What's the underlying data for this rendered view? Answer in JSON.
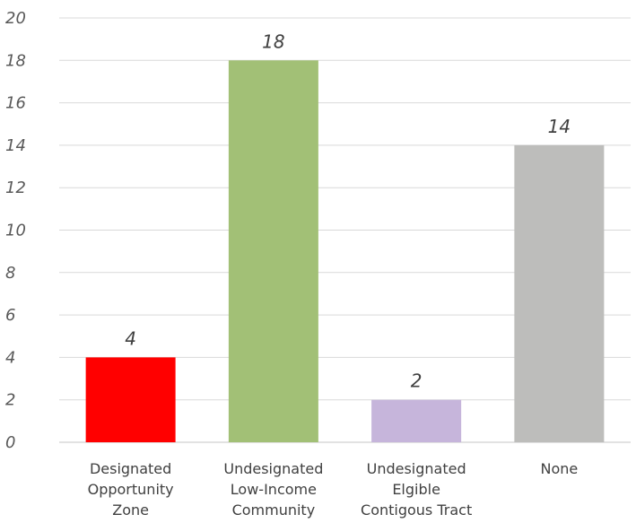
{
  "chart_data": {
    "type": "bar",
    "categories": [
      [
        "Designated",
        "Opportunity",
        "Zone"
      ],
      [
        "Undesignated",
        "Low-Income",
        "Community"
      ],
      [
        "Undesignated",
        "Elgible",
        "Contigous Tract"
      ],
      [
        "None"
      ]
    ],
    "values": [
      4,
      18,
      2,
      14
    ],
    "data_labels": [
      "4",
      "18",
      "2",
      "14"
    ],
    "bar_colors": [
      "#ff0000",
      "#a2c076",
      "#c6b5db",
      "#bdbdbb"
    ],
    "ylim": [
      0,
      20
    ],
    "yticks": [
      "0",
      "2",
      "4",
      "6",
      "8",
      "10",
      "12",
      "14",
      "16",
      "18",
      "20"
    ],
    "grid": true,
    "title": "",
    "xlabel": "",
    "ylabel": ""
  }
}
